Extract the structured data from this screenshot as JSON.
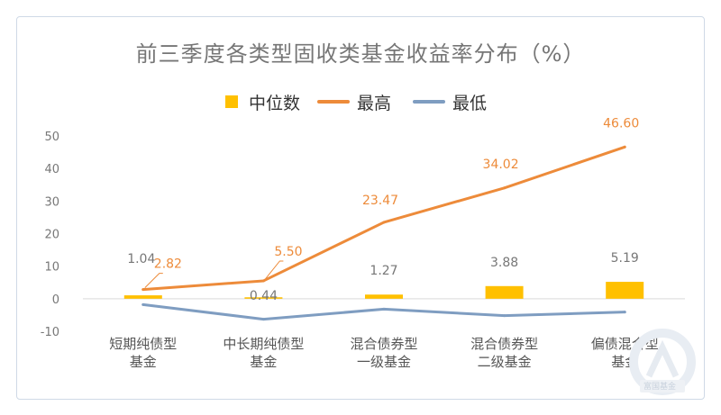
{
  "chart_data": {
    "type": "bar+line",
    "title": "前三季度各类型固收类基金收益率分布（%）",
    "categories": [
      [
        "短期纯债型",
        "基金"
      ],
      [
        "中长期纯债型",
        "基金"
      ],
      [
        "混合债券型",
        "一级基金"
      ],
      [
        "混合债券型",
        "二级基金"
      ],
      [
        "偏债混合型",
        "基金"
      ]
    ],
    "series": [
      {
        "name": "中位数",
        "type": "bar",
        "color": "#FFC000",
        "values": [
          1.04,
          0.44,
          1.27,
          3.88,
          5.19
        ],
        "labels": [
          "1.04",
          "0.44",
          "1.27",
          "3.88",
          "5.19"
        ]
      },
      {
        "name": "最高",
        "type": "line",
        "color": "#ED8B3A",
        "values": [
          2.82,
          5.5,
          23.47,
          34.02,
          46.6
        ],
        "labels": [
          "2.82",
          "5.50",
          "23.47",
          "34.02",
          "46.60"
        ]
      },
      {
        "name": "最低",
        "type": "line",
        "color": "#7F9DC1",
        "values": [
          -1.8,
          -6.3,
          -3.2,
          -5.2,
          -4.1
        ]
      }
    ],
    "ylim": [
      -10,
      50
    ],
    "yticks": [
      50,
      40,
      30,
      20,
      10,
      0,
      -10
    ],
    "legend": "top-center",
    "grid": false
  },
  "watermark": {
    "text": "富国基金"
  }
}
